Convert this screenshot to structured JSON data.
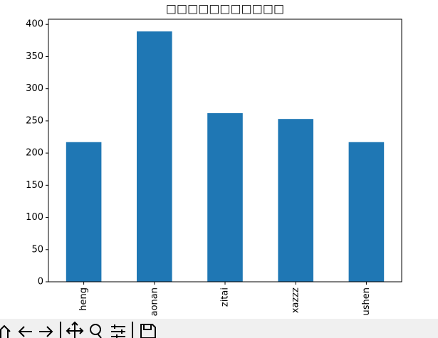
{
  "chart_data": {
    "type": "bar",
    "title": "□□□□□□□□□□□",
    "categories": [
      "heng",
      "aonan",
      "zitai",
      "xazzz",
      "ushen"
    ],
    "values": [
      217,
      389,
      262,
      253,
      217
    ],
    "color": "#1f77b4",
    "ylim": [
      0,
      408
    ],
    "yticks": [
      0,
      50,
      100,
      150,
      200,
      250,
      300,
      350,
      400
    ]
  }
}
